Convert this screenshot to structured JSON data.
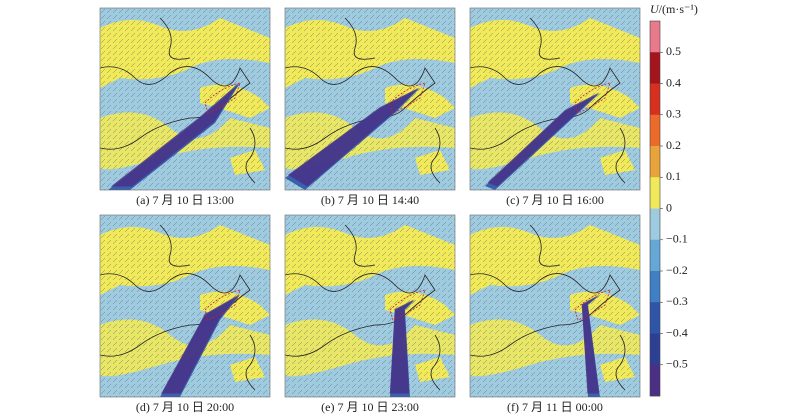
{
  "panels": [
    {
      "caption": "(a) 7 月 10 日 13:00"
    },
    {
      "caption": "(b) 7 月 10 日 14:40"
    },
    {
      "caption": "(c) 7 月 10 日 16:00"
    },
    {
      "caption": "(d) 7 月 10 日 20:00"
    },
    {
      "caption": "(e) 7 月 10 日 23:00"
    },
    {
      "caption": "(f) 7 月 11 日 00:00"
    }
  ],
  "colorbar": {
    "title": {
      "symbol": "U",
      "unit": "/(m·s⁻¹)"
    },
    "lim": [
      -0.6,
      0.6
    ],
    "ticks": [
      0.5,
      0.4,
      0.3,
      0.2,
      0.1,
      0,
      {
        "value": -0.1,
        "label": "−0.1"
      },
      {
        "value": -0.2,
        "label": "−0.2"
      },
      {
        "value": -0.3,
        "label": "−0.3"
      },
      {
        "value": -0.4,
        "label": "−0.4"
      },
      {
        "value": -0.5,
        "label": "−0.5"
      }
    ],
    "colors": [
      "#e87a8c",
      "#a3141c",
      "#d7301f",
      "#ec6a2a",
      "#e8a43a",
      "#f0e95a",
      "#9fcbe0",
      "#64a9d6",
      "#3f7fc4",
      "#2f55a8",
      "#2c3f93",
      "#4a2f85"
    ]
  }
}
